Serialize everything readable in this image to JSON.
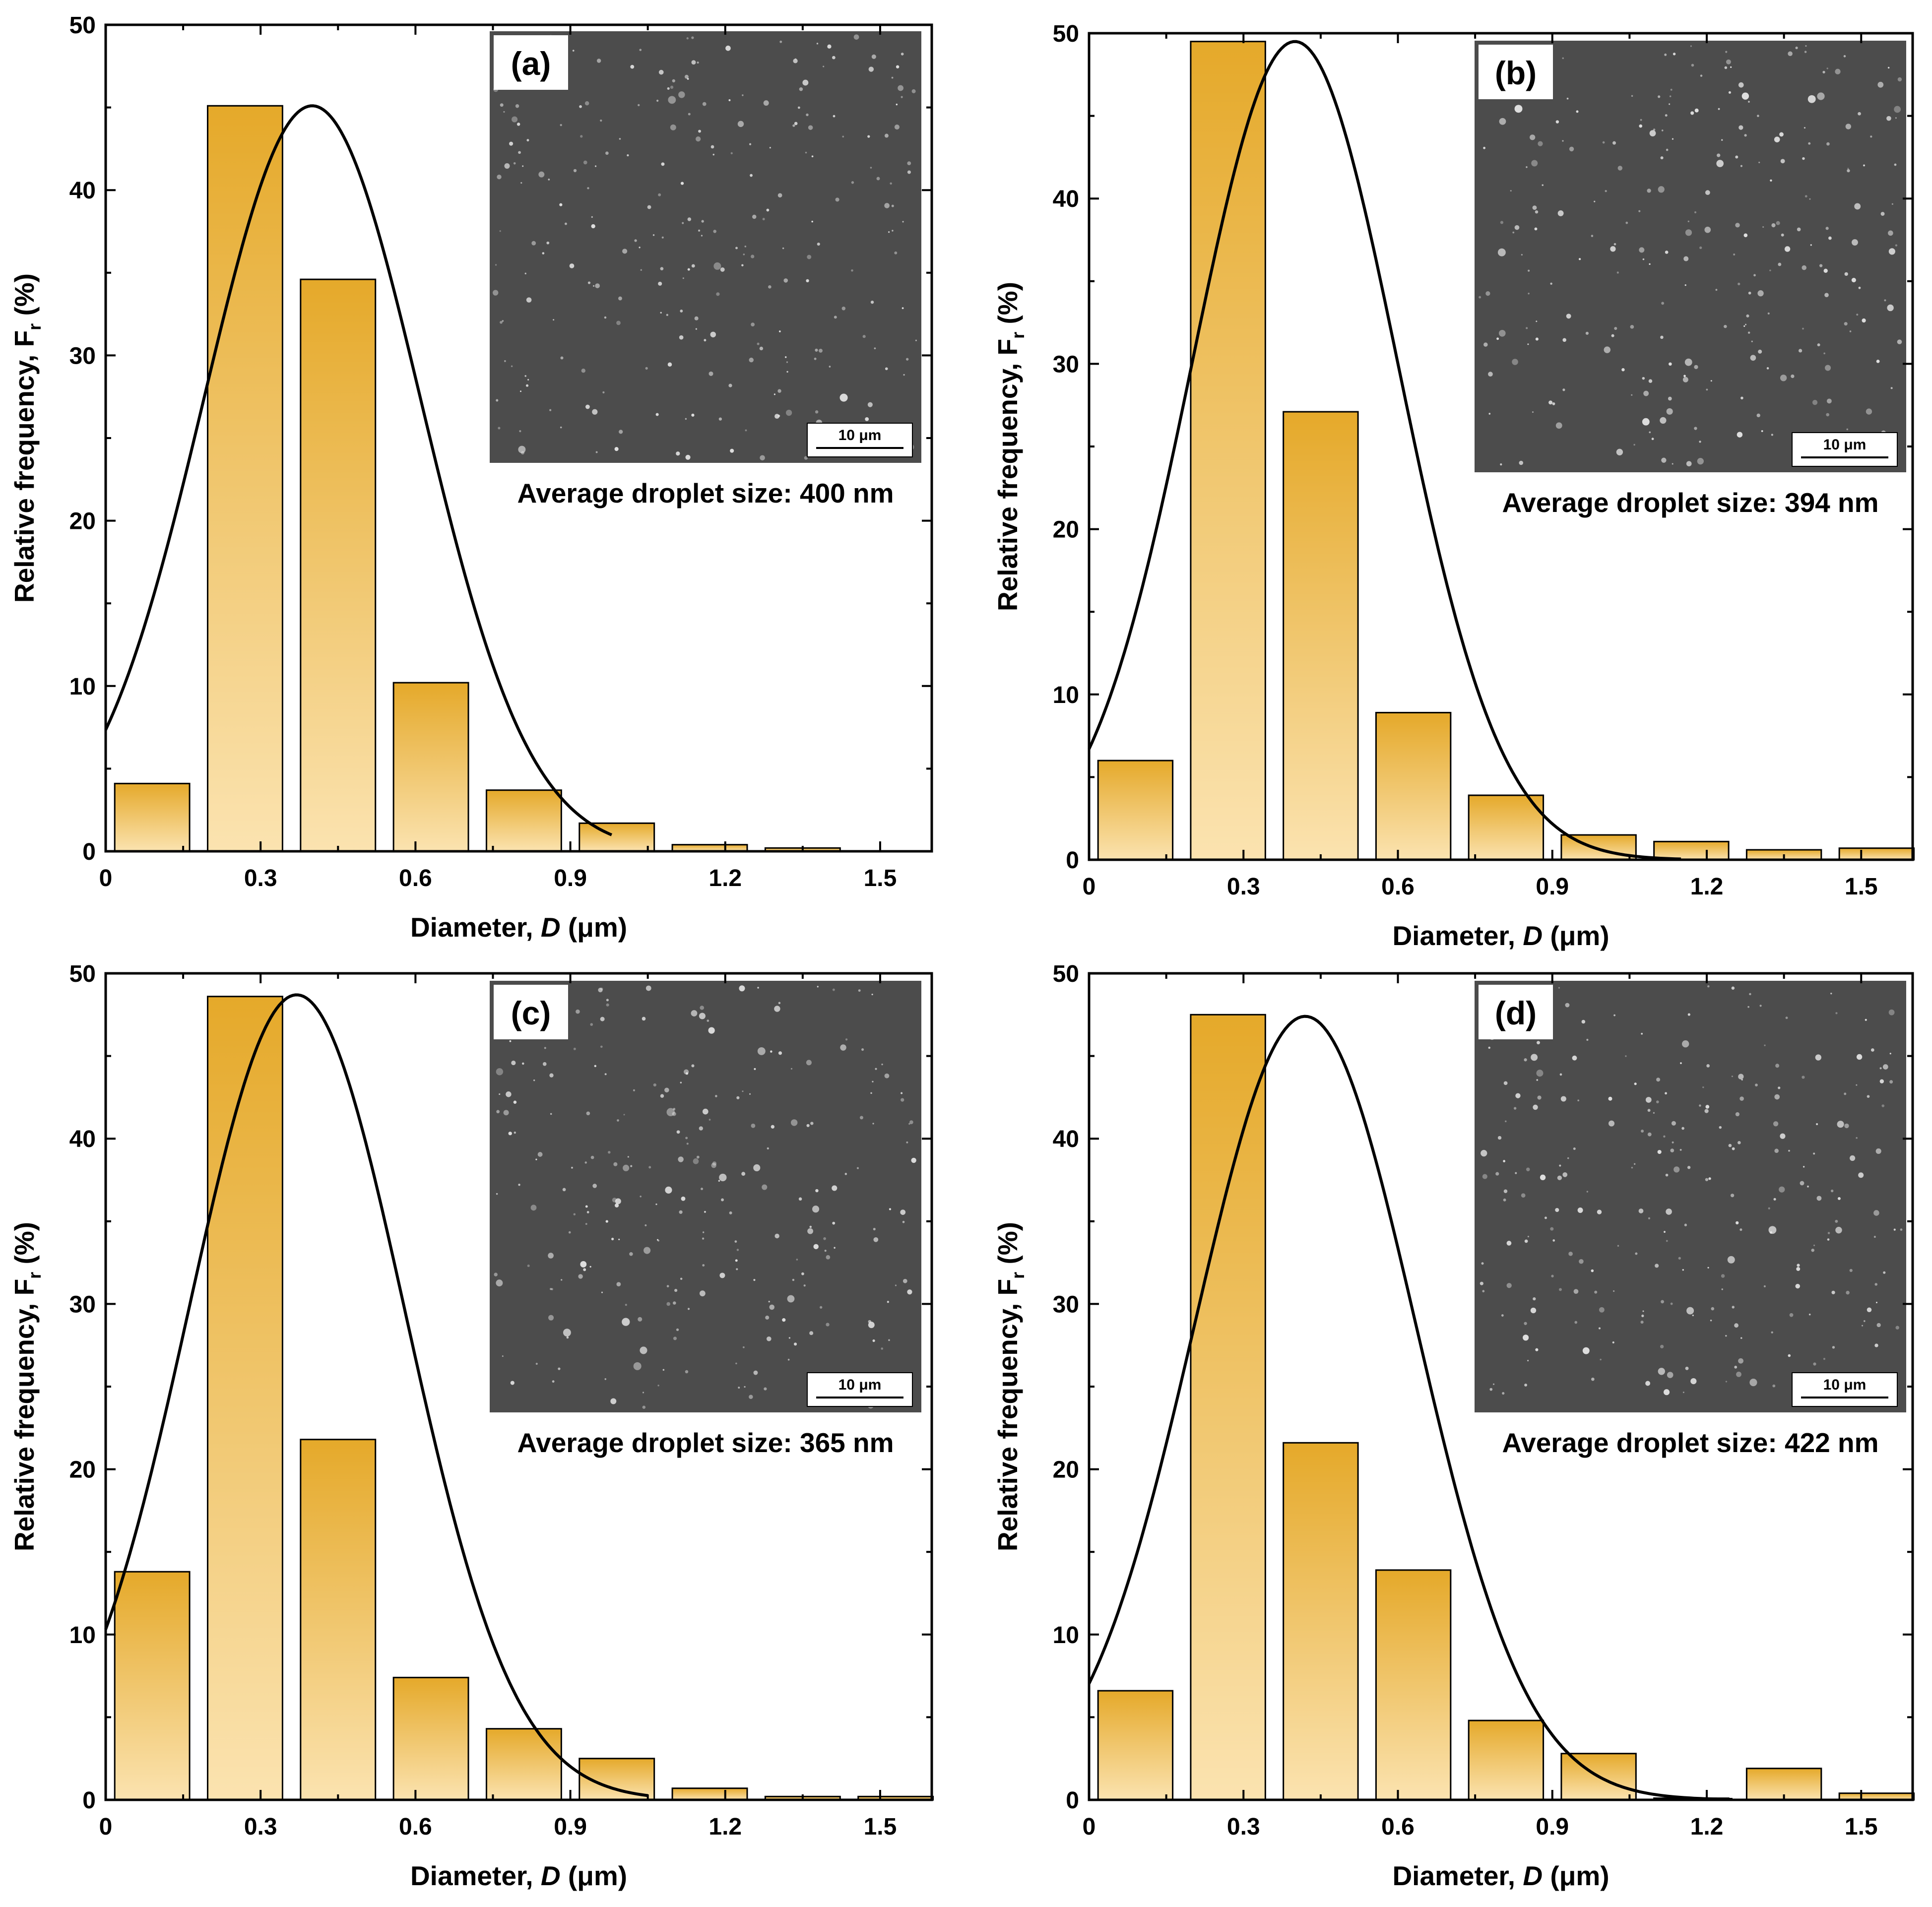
{
  "chart_data": [
    {
      "type": "bar",
      "panel_label": "(a)",
      "title": "",
      "xlabel_prefix": "Diameter, ",
      "xlabel_var": "D",
      "xlabel_unit": " (μm)",
      "ylabel_main": "Relative frequency, F",
      "ylabel_sub": "r",
      "ylabel_unit": " (%)",
      "xlim": [
        0,
        1.6
      ],
      "ylim": [
        0,
        50
      ],
      "xticks": [
        0,
        0.3,
        0.6,
        0.9,
        1.2,
        1.5
      ],
      "xtick_labels": [
        "0",
        "0.3",
        "0.6",
        "0.9",
        "1.2",
        "1.5"
      ],
      "yticks": [
        0,
        10,
        20,
        30,
        40,
        50
      ],
      "ytick_labels": [
        "0",
        "10",
        "20",
        "30",
        "40",
        "50"
      ],
      "bin_centers": [
        0.09,
        0.27,
        0.45,
        0.63,
        0.81,
        0.99,
        1.17,
        1.35
      ],
      "bar_width": 0.145,
      "values": [
        4.1,
        45.1,
        34.6,
        10.2,
        3.7,
        1.7,
        0.4,
        0.2
      ],
      "fit": {
        "type": "gaussian",
        "peak": 45.1,
        "mean": 0.4,
        "sigma": 0.21,
        "x_range": [
          0,
          0.98
        ]
      },
      "inset": {
        "caption": "Average droplet size: 400 nm",
        "scale_bar_label": "10 μm"
      }
    },
    {
      "type": "bar",
      "panel_label": "(b)",
      "title": "",
      "xlabel_prefix": "Diameter, ",
      "xlabel_var": "D",
      "xlabel_unit": " (μm)",
      "ylabel_main": "Relative frequency, F",
      "ylabel_sub": "r",
      "ylabel_unit": " (%)",
      "xlim": [
        0,
        1.6
      ],
      "ylim": [
        0,
        50
      ],
      "xticks": [
        0,
        0.3,
        0.6,
        0.9,
        1.2,
        1.5
      ],
      "xtick_labels": [
        "0",
        "0.3",
        "0.6",
        "0.9",
        "1.2",
        "1.5"
      ],
      "yticks": [
        0,
        10,
        20,
        30,
        40,
        50
      ],
      "ytick_labels": [
        "0",
        "10",
        "20",
        "30",
        "40",
        "50"
      ],
      "bin_centers": [
        0.09,
        0.27,
        0.45,
        0.63,
        0.81,
        0.99,
        1.17,
        1.35,
        1.53
      ],
      "bar_width": 0.145,
      "values": [
        6.0,
        49.5,
        27.1,
        8.9,
        3.9,
        1.5,
        1.1,
        0.6,
        0.7
      ],
      "fit": {
        "type": "gaussian",
        "peak": 49.5,
        "mean": 0.4,
        "sigma": 0.2,
        "x_range": [
          0,
          1.15
        ]
      },
      "inset": {
        "caption": "Average droplet size: 394 nm",
        "scale_bar_label": "10 μm"
      }
    },
    {
      "type": "bar",
      "panel_label": "(c)",
      "title": "",
      "xlabel_prefix": "Diameter, ",
      "xlabel_var": "D",
      "xlabel_unit": " (μm)",
      "ylabel_main": "Relative frequency, F",
      "ylabel_sub": "r",
      "ylabel_unit": " (%)",
      "xlim": [
        0,
        1.6
      ],
      "ylim": [
        0,
        50
      ],
      "xticks": [
        0,
        0.3,
        0.6,
        0.9,
        1.2,
        1.5
      ],
      "xtick_labels": [
        "0",
        "0.3",
        "0.6",
        "0.9",
        "1.2",
        "1.5"
      ],
      "yticks": [
        0,
        10,
        20,
        30,
        40,
        50
      ],
      "ytick_labels": [
        "0",
        "10",
        "20",
        "30",
        "40",
        "50"
      ],
      "bin_centers": [
        0.09,
        0.27,
        0.45,
        0.63,
        0.81,
        0.99,
        1.17,
        1.35,
        1.53
      ],
      "bar_width": 0.145,
      "values": [
        13.8,
        48.6,
        21.8,
        7.4,
        4.3,
        2.5,
        0.7,
        0.2,
        0.2
      ],
      "fit": {
        "type": "gaussian",
        "peak": 48.7,
        "mean": 0.37,
        "sigma": 0.21,
        "x_range": [
          0,
          1.05
        ]
      },
      "inset": {
        "caption": "Average droplet size: 365 nm",
        "scale_bar_label": "10 μm"
      }
    },
    {
      "type": "bar",
      "panel_label": "(d)",
      "title": "",
      "xlabel_prefix": "Diameter, ",
      "xlabel_var": "D",
      "xlabel_unit": " (μm)",
      "ylabel_main": "Relative frequency, F",
      "ylabel_sub": "r",
      "ylabel_unit": " (%)",
      "xlim": [
        0,
        1.6
      ],
      "ylim": [
        0,
        50
      ],
      "xticks": [
        0,
        0.3,
        0.6,
        0.9,
        1.2,
        1.5
      ],
      "xtick_labels": [
        "0",
        "0.3",
        "0.6",
        "0.9",
        "1.2",
        "1.5"
      ],
      "yticks": [
        0,
        10,
        20,
        30,
        40,
        50
      ],
      "ytick_labels": [
        "0",
        "10",
        "20",
        "30",
        "40",
        "50"
      ],
      "bin_centers": [
        0.09,
        0.27,
        0.45,
        0.63,
        0.81,
        0.99,
        1.17,
        1.35,
        1.53
      ],
      "bar_width": 0.145,
      "values": [
        6.6,
        47.5,
        21.6,
        13.9,
        4.8,
        2.8,
        0.1,
        1.9,
        0.4
      ],
      "fit": {
        "type": "gaussian",
        "peak": 47.4,
        "mean": 0.42,
        "sigma": 0.215,
        "x_range": [
          0,
          1.25
        ]
      },
      "inset": {
        "caption": "Average droplet size: 422 nm",
        "scale_bar_label": "10 μm"
      }
    }
  ],
  "colors": {
    "bar_top": "#E5A92A",
    "bar_bottom": "#FBE3B0",
    "inset_bg": "#4C4C4C",
    "curve": "#000000"
  }
}
